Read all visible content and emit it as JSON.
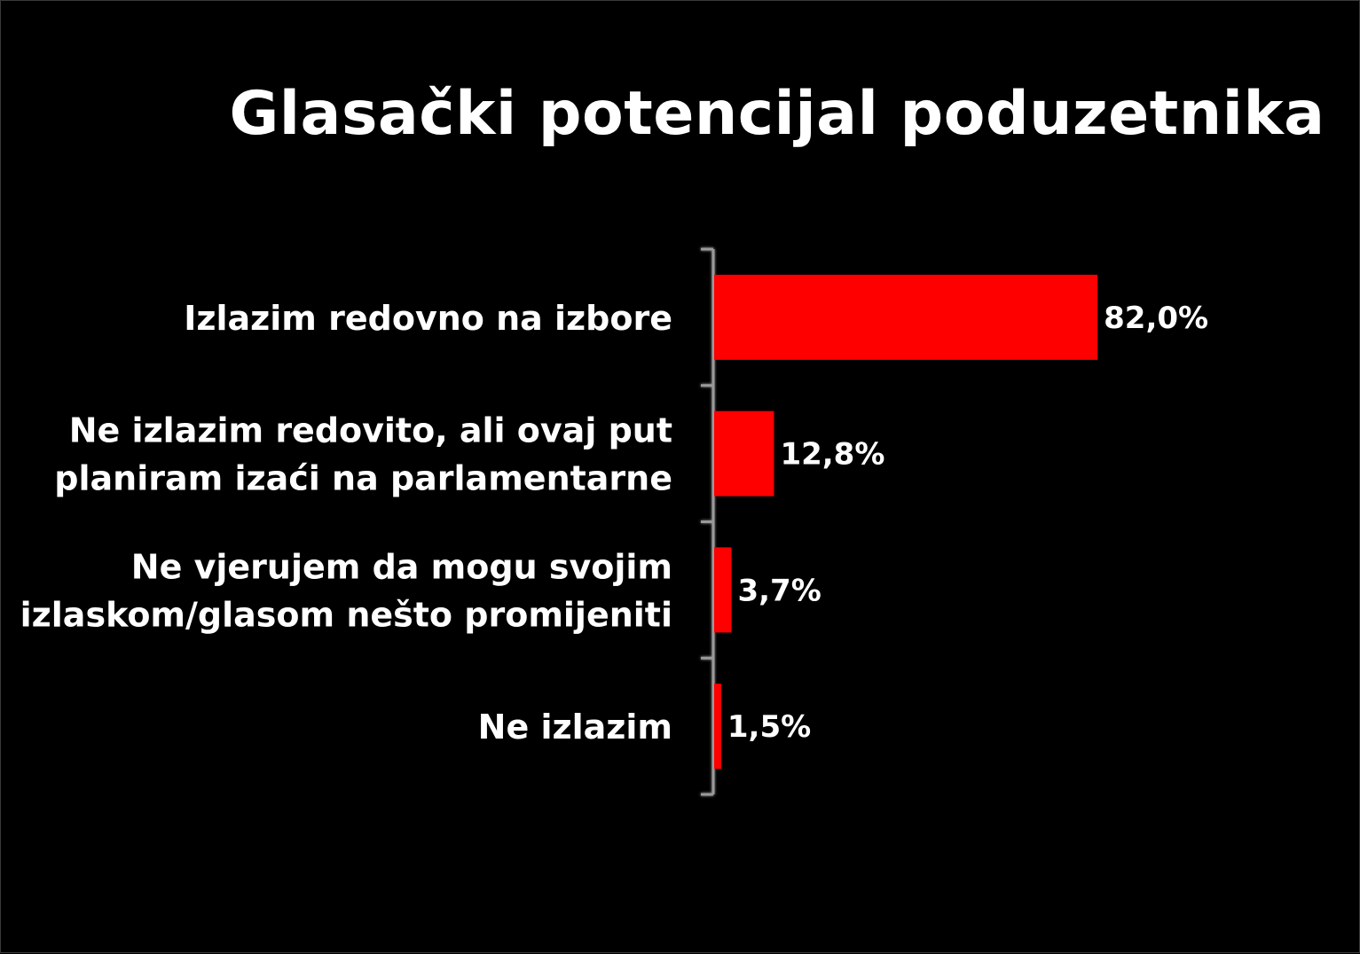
{
  "chart_data": {
    "type": "bar",
    "orientation": "horizontal",
    "title": "Glasački potencijal poduzetnika",
    "categories": [
      [
        "Izlazim redovno na izbore"
      ],
      [
        "Ne izlazim redovito, ali ovaj put",
        "planiram izaći na parlamentarne"
      ],
      [
        "Ne vjerujem da mogu svojim",
        "izlaskom/glasom nešto promijeniti"
      ],
      [
        "Ne izlazim"
      ]
    ],
    "values": [
      82.0,
      12.8,
      3.7,
      1.5
    ],
    "value_labels": [
      "82,0%",
      "12,8%",
      "3,7%",
      "1,5%"
    ],
    "unit": "%",
    "xlim": [
      0,
      100
    ],
    "grid": false,
    "legend": "none",
    "bar_color": "#ff0000",
    "background_color": "#000000",
    "text_color": "#ffffff",
    "axis_color": "#9a9a9a"
  }
}
